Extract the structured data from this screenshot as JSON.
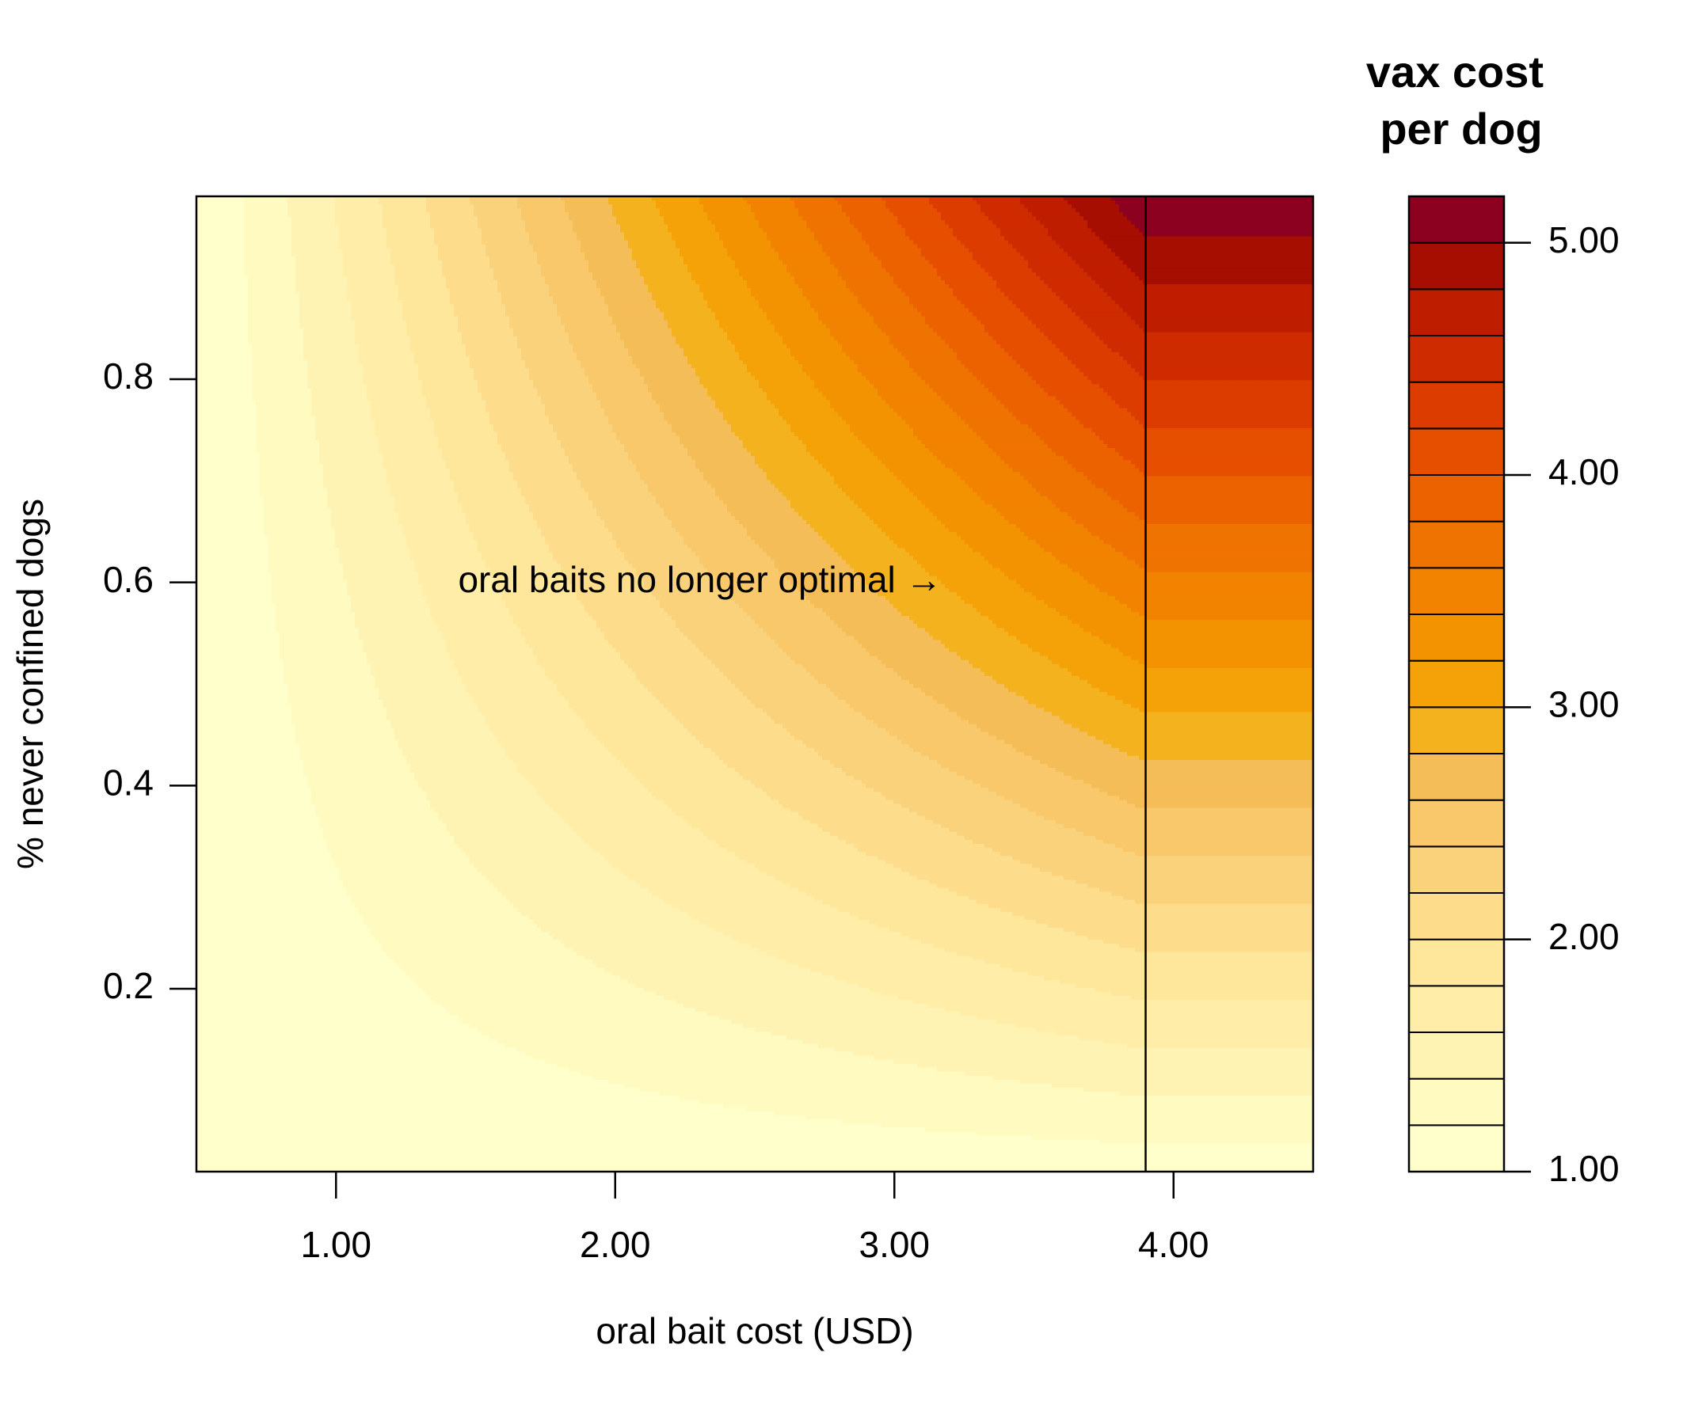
{
  "chart_data": {
    "type": "heatmap",
    "subtype": "filled-contour",
    "title": "",
    "xlabel": "oral bait cost (USD)",
    "ylabel": "% never confined dogs",
    "xlim": [
      0.5,
      4.5
    ],
    "ylim": [
      0.02,
      0.98
    ],
    "x_ticks": [
      1.0,
      2.0,
      3.0,
      4.0
    ],
    "x_tick_labels": [
      "1.00",
      "2.00",
      "3.00",
      "4.00"
    ],
    "y_ticks": [
      0.2,
      0.4,
      0.6,
      0.8
    ],
    "y_tick_labels": [
      "0.2",
      "0.4",
      "0.6",
      "0.8"
    ],
    "surface": {
      "description_formula": "cost = 1 + (bait_cost - 0.5) * never_confined_fraction * 1.25, capped at bait_cost = 3.9 (oral baits no longer optimal beyond)",
      "base": 1.0,
      "x_offset": 0.5,
      "coefficient": 1.25,
      "cutoff_x": 3.9
    },
    "cutoff_line": {
      "x": 3.9
    },
    "annotation": {
      "text": "oral baits no longer optimal →",
      "x": 2.9,
      "y": 0.6
    },
    "legend": {
      "title_lines": [
        "vax cost",
        "per dog"
      ],
      "range": [
        1.0,
        5.2
      ],
      "step": 0.2,
      "ticks": [
        1.0,
        2.0,
        3.0,
        4.0,
        5.0
      ],
      "tick_labels": [
        "1.00",
        "2.00",
        "3.00",
        "4.00",
        "5.00"
      ],
      "placement": "right"
    },
    "colors": [
      "#ffffcc",
      "#fffac0",
      "#fff3b4",
      "#ffeda8",
      "#fee69b",
      "#fddc8c",
      "#fad27c",
      "#f8c86b",
      "#f5bd57",
      "#f4b21f",
      "#f4a207",
      "#f39302",
      "#f28300",
      "#ef7300",
      "#ec6200",
      "#e74f00",
      "#dc3c00",
      "#cf2b00",
      "#bf1d00",
      "#a50e00",
      "#8c0020",
      "#75002b"
    ]
  }
}
